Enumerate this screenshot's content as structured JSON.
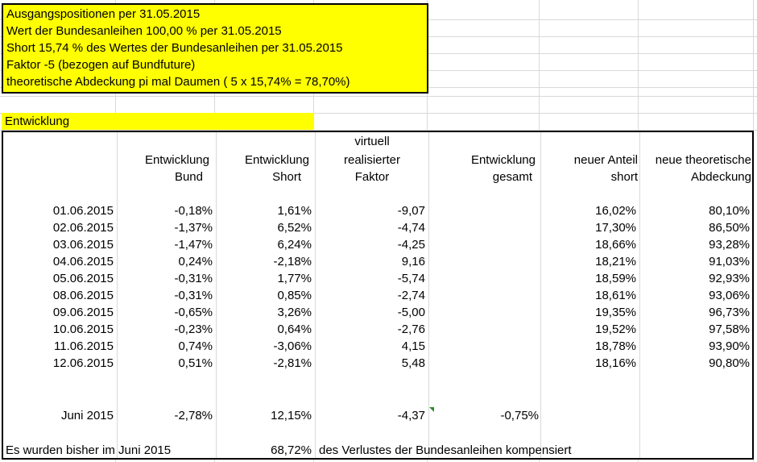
{
  "info": {
    "lines": [
      "Ausgangspositionen per 31.05.2015",
      "Wert der Bundesanleihen 100,00 % per 31.05.2015",
      "Short 15,74 % des Wertes der Bundesanleihen per 31.05.2015",
      "Faktor -5 (bezogen auf Bundfuture)",
      "theoretische Abdeckung pi mal Daumen ( 5 x 15,74% = 78,70%)"
    ],
    "highlight_color": "#ffff00"
  },
  "section_label": "Entwicklung",
  "headers": {
    "bund": [
      "Entwicklung",
      "Bund"
    ],
    "short": [
      "Entwicklung",
      "Short"
    ],
    "faktor": [
      "virtuell",
      "realisierter",
      "Faktor"
    ],
    "gesamt": [
      "Entwicklung",
      "gesamt"
    ],
    "anteil": [
      "neuer Anteil",
      "short"
    ],
    "abdeckung": [
      "neue theoretische",
      "Abdeckung"
    ]
  },
  "rows": [
    {
      "date": "01.06.2015",
      "bund": "-0,18%",
      "short": "1,61%",
      "faktor": "-9,07",
      "anteil": "16,02%",
      "abdeckung": "80,10%"
    },
    {
      "date": "02.06.2015",
      "bund": "-1,37%",
      "short": "6,52%",
      "faktor": "-4,74",
      "anteil": "17,30%",
      "abdeckung": "86,50%"
    },
    {
      "date": "03.06.2015",
      "bund": "-1,47%",
      "short": "6,24%",
      "faktor": "-4,25",
      "anteil": "18,66%",
      "abdeckung": "93,28%"
    },
    {
      "date": "04.06.2015",
      "bund": "0,24%",
      "short": "-2,18%",
      "faktor": "9,16",
      "anteil": "18,21%",
      "abdeckung": "91,03%"
    },
    {
      "date": "05.06.2015",
      "bund": "-0,31%",
      "short": "1,77%",
      "faktor": "-5,74",
      "anteil": "18,59%",
      "abdeckung": "92,93%"
    },
    {
      "date": "08.06.2015",
      "bund": "-0,31%",
      "short": "0,85%",
      "faktor": "-2,74",
      "anteil": "18,61%",
      "abdeckung": "93,06%"
    },
    {
      "date": "09.06.2015",
      "bund": "-0,65%",
      "short": "3,26%",
      "faktor": "-5,00",
      "anteil": "19,35%",
      "abdeckung": "96,73%"
    },
    {
      "date": "10.06.2015",
      "bund": "-0,23%",
      "short": "0,64%",
      "faktor": "-2,76",
      "anteil": "19,52%",
      "abdeckung": "97,58%"
    },
    {
      "date": "11.06.2015",
      "bund": "0,74%",
      "short": "-3,06%",
      "faktor": "4,15",
      "anteil": "18,78%",
      "abdeckung": "93,90%"
    },
    {
      "date": "12.06.2015",
      "bund": "0,51%",
      "short": "-2,81%",
      "faktor": "5,48",
      "anteil": "18,16%",
      "abdeckung": "90,80%"
    }
  ],
  "summary": {
    "label": "Juni 2015",
    "bund": "-2,78%",
    "short": "12,15%",
    "faktor": "-4,37",
    "gesamt": "-0,75%"
  },
  "footer": {
    "prefix": "Es wurden bisher im Juni 2015",
    "value": "68,72%",
    "suffix": "des Verlustes der Bundesanleihen kompensiert"
  }
}
